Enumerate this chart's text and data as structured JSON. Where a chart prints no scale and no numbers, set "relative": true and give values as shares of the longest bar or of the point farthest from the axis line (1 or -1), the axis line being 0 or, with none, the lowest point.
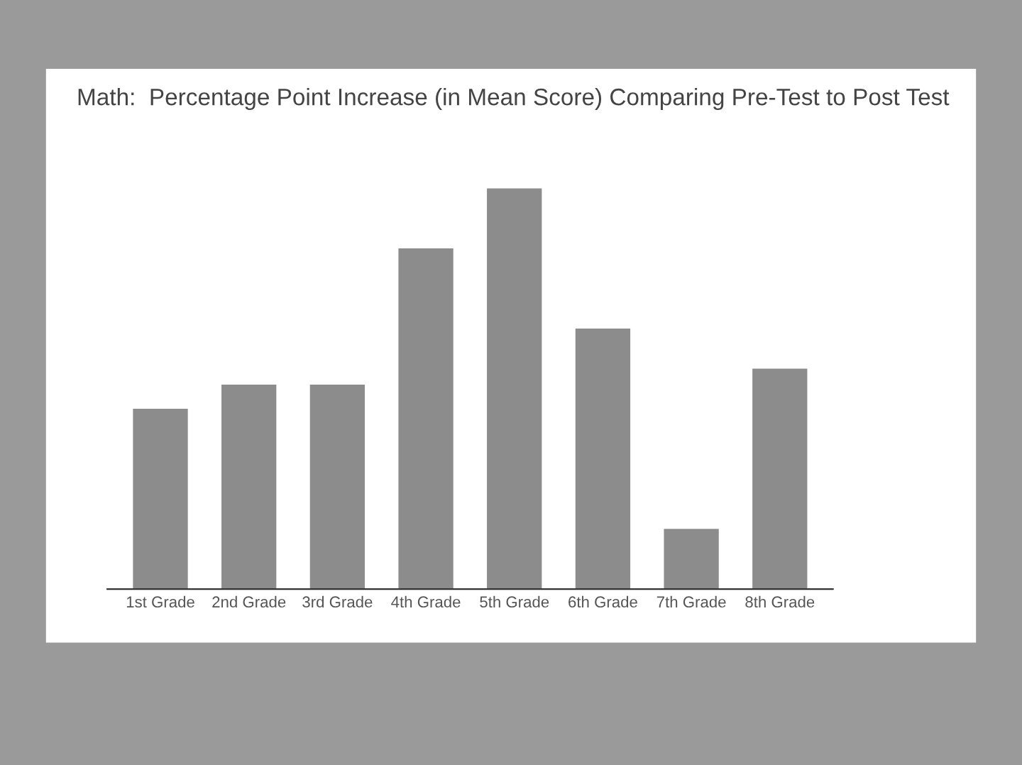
{
  "chart_data": {
    "type": "bar",
    "title": "Math:  Percentage Point Increase (in Mean Score) Comparing Pre-Test to Post Test",
    "categories": [
      "1st Grade",
      "2nd Grade",
      "3rd Grade",
      "4th Grade",
      "5th Grade",
      "6th Grade",
      "7th Grade",
      "8th Grade"
    ],
    "values": [
      0.45,
      0.51,
      0.51,
      0.85,
      1,
      0.65,
      0.15,
      0.55
    ],
    "color": "#8c8c8c",
    "relative": true,
    "grid": false
  }
}
